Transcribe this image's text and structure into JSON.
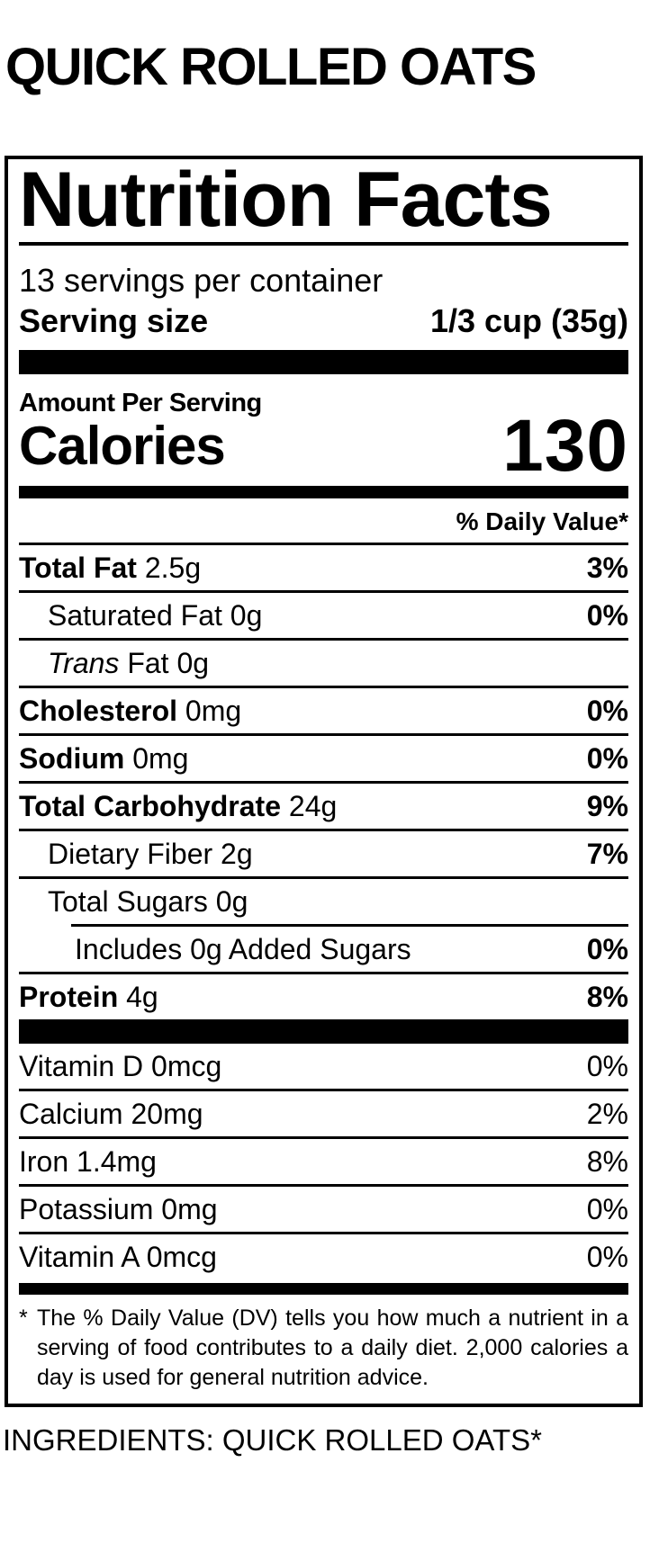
{
  "colors": {
    "ink": "#000000",
    "background": "#ffffff"
  },
  "page": {
    "product_title": "QUICK ROLLED OATS",
    "ingredients_line": "INGREDIENTS: QUICK ROLLED OATS*"
  },
  "label": {
    "heading": "Nutrition Facts",
    "servings_per_container": "13 servings per container",
    "serving_size_label": "Serving size",
    "serving_size_value": "1/3 cup (35g)",
    "amount_per_serving": "Amount Per Serving",
    "calories_label": "Calories",
    "calories_value": "130",
    "daily_value_header": "% Daily Value*",
    "rows": [
      {
        "bold": "Total Fat",
        "italic": "",
        "text": " 2.5g",
        "dv": "3%"
      },
      {
        "bold": "",
        "italic": "",
        "text": "Saturated Fat 0g",
        "dv": "0%"
      },
      {
        "bold": "",
        "italic": "Trans",
        "text": " Fat 0g",
        "dv": ""
      },
      {
        "bold": "Cholesterol",
        "italic": "",
        "text": " 0mg",
        "dv": "0%"
      },
      {
        "bold": "Sodium",
        "italic": "",
        "text": " 0mg",
        "dv": "0%"
      },
      {
        "bold": "Total Carbohydrate",
        "italic": "",
        "text": " 24g",
        "dv": "9%"
      },
      {
        "bold": "",
        "italic": "",
        "text": "Dietary Fiber 2g",
        "dv": "7%"
      },
      {
        "bold": "",
        "italic": "",
        "text": "Total Sugars 0g",
        "dv": ""
      },
      {
        "bold": "",
        "italic": "",
        "text": "Includes 0g Added Sugars",
        "dv": "0%"
      },
      {
        "bold": "Protein",
        "italic": "",
        "text": " 4g",
        "dv": "8%"
      }
    ],
    "vitamins": [
      {
        "text": "Vitamin D 0mcg",
        "dv": "0%"
      },
      {
        "text": "Calcium 20mg",
        "dv": "2%"
      },
      {
        "text": "Iron 1.4mg",
        "dv": "8%"
      },
      {
        "text": "Potassium 0mg",
        "dv": "0%"
      },
      {
        "text": "Vitamin A 0mcg",
        "dv": "0%"
      }
    ],
    "footnote": {
      "star": "*",
      "text": "The % Daily Value (DV) tells you how much a nutrient in a serving of food contributes to a daily diet. 2,000 calories a day is used for general nutrition advice."
    }
  }
}
